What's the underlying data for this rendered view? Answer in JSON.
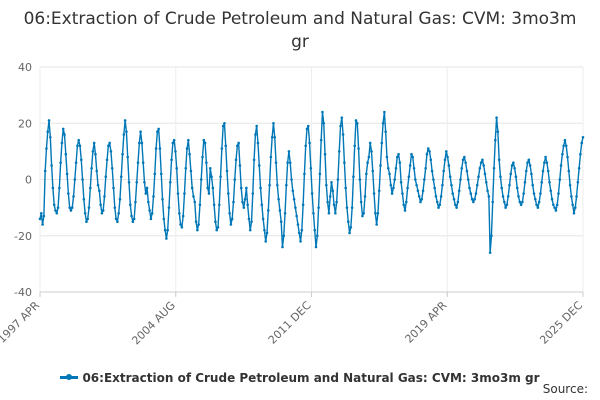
{
  "chart_data": {
    "type": "line",
    "title": "06:Extraction of Crude Petroleum and Natural Gas: CVM: 3mo3m gr",
    "xlabel": "",
    "ylabel": "",
    "x_start": "1997 APR",
    "x_end": "2025 DEC",
    "x_tick_labels": [
      "1997 APR",
      "2004 AUG",
      "2011 DEC",
      "2019 APR",
      "2025 DEC"
    ],
    "ylim": [
      -40,
      40
    ],
    "y_ticks": [
      -40,
      -20,
      0,
      20,
      40
    ],
    "grid": true,
    "legend_position": "bottom",
    "series": [
      {
        "name": "06:Extraction of Crude Petroleum and Natural Gas: CVM: 3mo3m gr",
        "color": "#0077b6",
        "values": [
          -14,
          -12,
          -16,
          -13,
          3,
          11,
          17,
          21,
          15,
          5,
          -3,
          -9,
          -11,
          -12,
          -10,
          -3,
          6,
          13,
          18,
          16,
          9,
          2,
          -5,
          -10,
          -11,
          -10,
          -6,
          0,
          6,
          12,
          14,
          12,
          7,
          0,
          -7,
          -12,
          -15,
          -14,
          -10,
          -3,
          4,
          10,
          13,
          9,
          3,
          -2,
          -4,
          -9,
          -12,
          -11,
          -6,
          1,
          7,
          12,
          13,
          10,
          4,
          -3,
          -10,
          -14,
          -15,
          -12,
          -7,
          1,
          9,
          16,
          21,
          17,
          8,
          -1,
          -9,
          -13,
          -15,
          -14,
          -8,
          -1,
          6,
          13,
          17,
          13,
          6,
          -1,
          -5,
          -3,
          -8,
          -11,
          -14,
          -12,
          -6,
          2,
          11,
          17,
          18,
          11,
          2,
          -7,
          -14,
          -18,
          -21,
          -18,
          -10,
          -1,
          7,
          13,
          14,
          10,
          4,
          -5,
          -12,
          -16,
          -17,
          -13,
          -5,
          4,
          11,
          14,
          9,
          3,
          -3,
          -6,
          -8,
          -15,
          -18,
          -16,
          -9,
          0,
          8,
          14,
          13,
          6,
          -3,
          -5,
          4,
          1,
          -3,
          -9,
          -15,
          -18,
          -17,
          -9,
          1,
          11,
          19,
          20,
          12,
          3,
          -5,
          -12,
          -16,
          -14,
          -8,
          0,
          7,
          12,
          13,
          5,
          -3,
          -8,
          -10,
          -7,
          -3,
          -9,
          -14,
          -18,
          -15,
          -5,
          7,
          16,
          19,
          13,
          5,
          -3,
          -9,
          -14,
          -18,
          -22,
          -19,
          -11,
          -2,
          8,
          15,
          20,
          15,
          6,
          -2,
          -7,
          -11,
          -15,
          -24,
          -20,
          -12,
          -2,
          6,
          10,
          6,
          0,
          -4,
          -7,
          -10,
          -13,
          -16,
          -19,
          -22,
          -18,
          -9,
          2,
          12,
          18,
          19,
          13,
          4,
          -5,
          -12,
          -18,
          -24,
          -20,
          -10,
          2,
          14,
          24,
          20,
          9,
          -2,
          -8,
          -12,
          -6,
          -1,
          -4,
          -9,
          -12,
          -8,
          0,
          10,
          19,
          22,
          16,
          6,
          -3,
          -10,
          -15,
          -19,
          -17,
          -10,
          1,
          12,
          21,
          20,
          11,
          0,
          -8,
          -13,
          -12,
          -6,
          2,
          6,
          8,
          13,
          10,
          3,
          -5,
          -12,
          -16,
          -12,
          -4,
          5,
          13,
          20,
          24,
          17,
          8,
          4,
          2,
          -2,
          -5,
          -3,
          0,
          4,
          8,
          9,
          6,
          -1,
          -5,
          -9,
          -11,
          -8,
          -3,
          1,
          5,
          9,
          8,
          4,
          0,
          -2,
          -4,
          -6,
          -8,
          -7,
          -4,
          0,
          4,
          9,
          11,
          10,
          7,
          3,
          0,
          -3,
          -6,
          -8,
          -10,
          -9,
          -6,
          -2,
          3,
          7,
          10,
          8,
          5,
          1,
          -2,
          -5,
          -7,
          -9,
          -10,
          -8,
          -4,
          0,
          4,
          7,
          8,
          6,
          3,
          0,
          -3,
          -5,
          -7,
          -8,
          -7,
          -5,
          -2,
          1,
          4,
          6,
          7,
          5,
          2,
          -1,
          -4,
          -6,
          -26,
          -20,
          -8,
          4,
          14,
          22,
          17,
          7,
          1,
          -3,
          -6,
          -8,
          -10,
          -9,
          -6,
          -2,
          2,
          5,
          6,
          4,
          1,
          -3,
          -6,
          -8,
          -9,
          -8,
          -5,
          -1,
          3,
          6,
          7,
          5,
          2,
          -2,
          -5,
          -7,
          -9,
          -10,
          -8,
          -5,
          -1,
          3,
          6,
          8,
          6,
          3,
          -1,
          -4,
          -7,
          -9,
          -10,
          -11,
          -9,
          -5,
          0,
          5,
          9,
          12,
          14,
          12,
          8,
          3,
          -2,
          -6,
          -9,
          -12,
          -10,
          -6,
          -1,
          4,
          9,
          13,
          15
        ]
      }
    ]
  },
  "footer": {
    "source_label": "Source:"
  }
}
